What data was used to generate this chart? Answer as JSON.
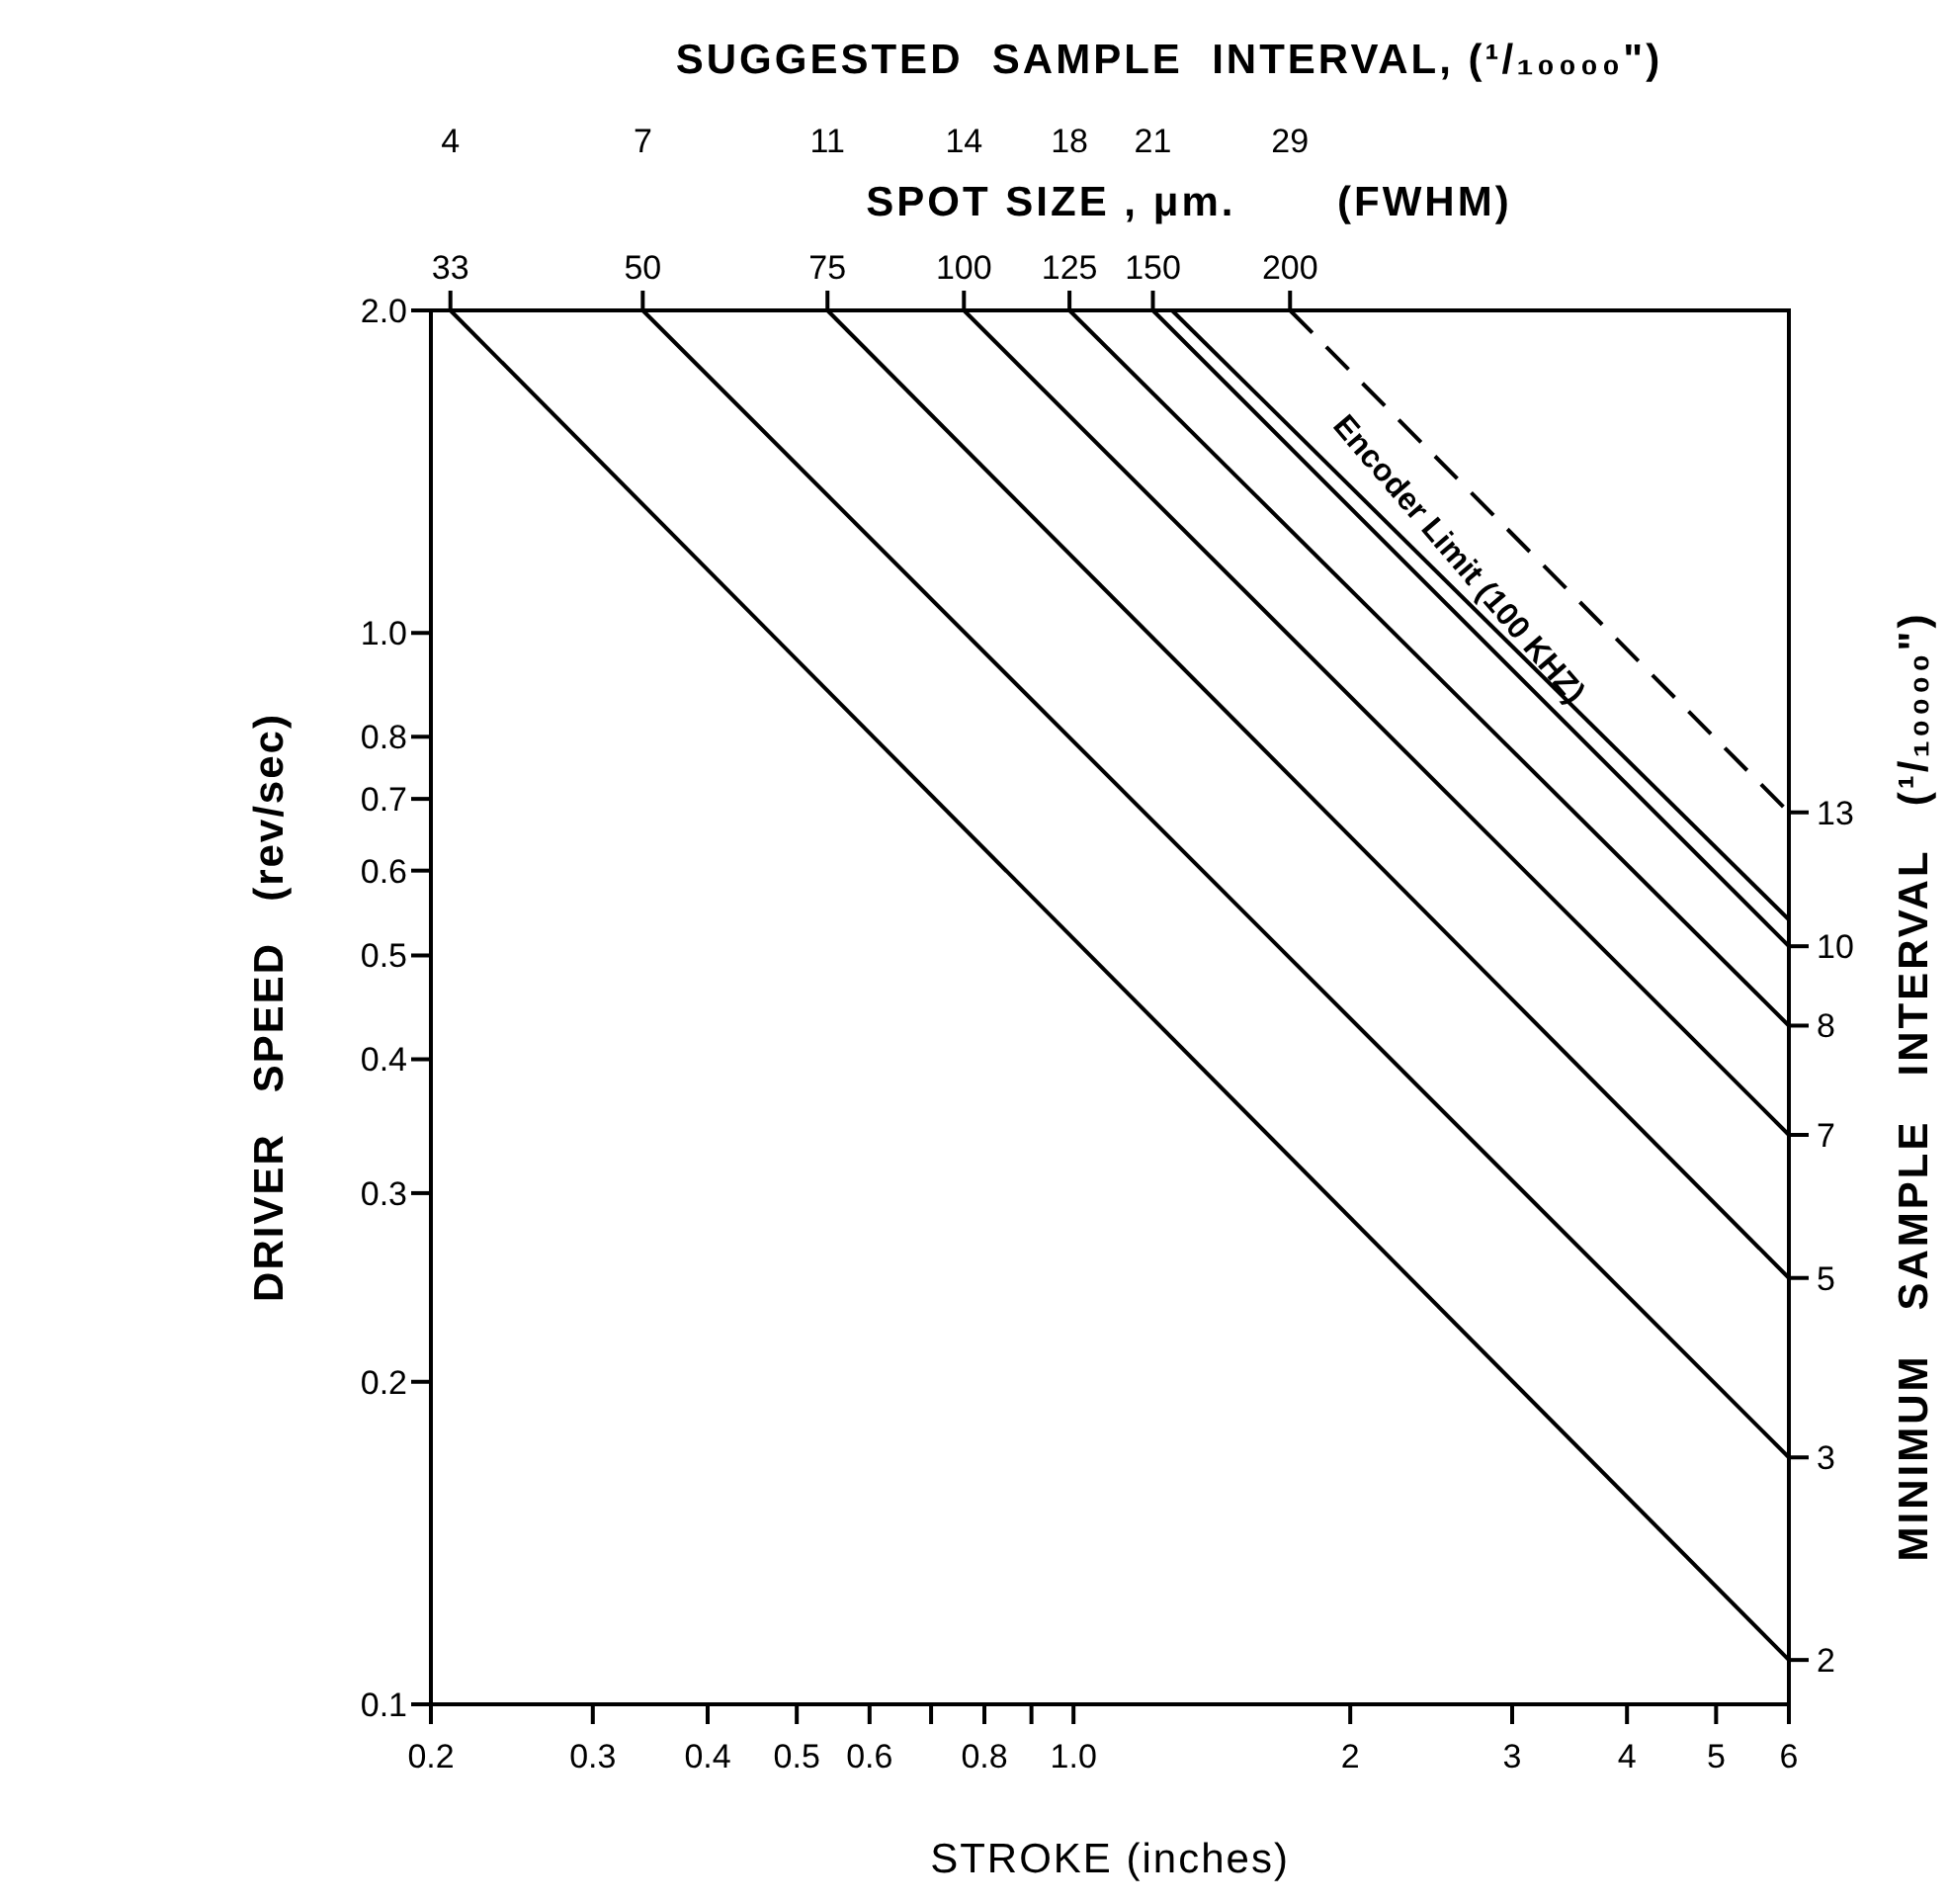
{
  "chart_data": {
    "type": "line",
    "xlabel": "STROKE (inches)",
    "ylabel": "DRIVER   SPEED   (rev/sec)",
    "log": "xy",
    "grid": false,
    "legend": false,
    "marker": "none",
    "xlim": [
      0.2,
      6
    ],
    "xticks": [
      {
        "value": 0.2,
        "label": "0.2"
      },
      0.3,
      0.4,
      0.5,
      0.6,
      {
        "value": 0.7,
        "label": null
      },
      0.8,
      {
        "value": 0.9,
        "label": null
      },
      {
        "value": 1,
        "label": "1.0"
      },
      2,
      3,
      4,
      5,
      6
    ],
    "ylim": [
      0.1,
      2.0
    ],
    "yticks": [
      0.1,
      0.2,
      0.3,
      0.4,
      0.5,
      0.6,
      0.7,
      0.8,
      {
        "value": 1,
        "label": "1.0"
      },
      {
        "value": 2,
        "label": "2.0"
      }
    ],
    "series": [
      {
        "name": "33",
        "color": "#000000",
        "line_style": "solid",
        "x": [
          0.21,
          6
        ],
        "values": [
          2.0,
          0.11
        ]
      },
      {
        "name": "50",
        "color": "#000000",
        "line_style": "solid",
        "x": [
          0.34,
          6
        ],
        "values": [
          2.0,
          0.17
        ]
      },
      {
        "name": "75",
        "color": "#000000",
        "line_style": "solid",
        "x": [
          0.54,
          6
        ],
        "values": [
          2.0,
          0.25
        ]
      },
      {
        "name": "100",
        "color": "#000000",
        "line_style": "solid",
        "x": [
          0.76,
          6
        ],
        "values": [
          2.0,
          0.34
        ]
      },
      {
        "name": "125",
        "color": "#000000",
        "line_style": "solid",
        "x": [
          0.99,
          6
        ],
        "values": [
          2.0,
          0.43
        ]
      },
      {
        "name": "150",
        "color": "#000000",
        "line_style": "solid",
        "x": [
          1.22,
          6
        ],
        "values": [
          2.0,
          0.51
        ]
      },
      {
        "color": "#000000",
        "line_style": "solid",
        "x": [
          1.28,
          6
        ],
        "values": [
          2.0,
          0.54
        ]
      },
      {
        "name": "200",
        "color": "#000000",
        "line_style": "dashed",
        "x": [
          1.72,
          6
        ],
        "values": [
          2.0,
          0.68
        ]
      }
    ],
    "annotations": [
      "SUGGESTED  SAMPLE  INTERVAL, (¹/₁₀₀₀₀\")",
      "SPOT SIZE , μm.       (FWHM)",
      "MINIMUM   SAMPLE   INTERVAL   (¹/₁₀₀₀₀\")",
      "4",
      "7",
      "11",
      "14",
      "18",
      "21",
      "29",
      "2",
      "3",
      "5",
      "7",
      "8",
      "10",
      "13",
      {
        "text": "Encoder Limit (100 KHZ)",
        "x": 2.5,
        "y": 1.13
      }
    ]
  }
}
